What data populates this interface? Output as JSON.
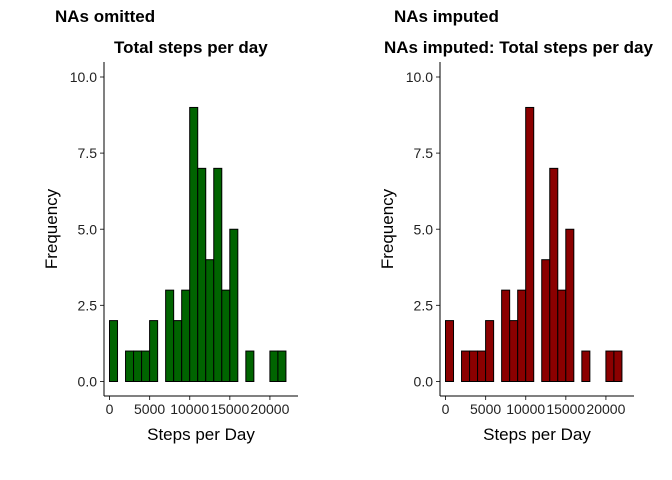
{
  "chart_data": [
    {
      "type": "bar",
      "tag": "NAs omitted",
      "title": "Total steps per day",
      "xlabel": "Steps per Day",
      "ylabel": "Frequency",
      "fill_color": "#006400",
      "bin_width": 1000,
      "bin_starts": [
        0,
        1000,
        2000,
        3000,
        4000,
        5000,
        6000,
        7000,
        8000,
        9000,
        10000,
        11000,
        12000,
        13000,
        14000,
        15000,
        16000,
        17000,
        18000,
        19000,
        20000,
        21000
      ],
      "values": [
        2,
        0,
        1,
        1,
        1,
        2,
        0,
        3,
        2,
        3,
        9,
        7,
        4,
        7,
        3,
        5,
        0,
        1,
        0,
        0,
        1,
        1
      ],
      "x_ticks": [
        "0",
        "5000",
        "10000",
        "15000",
        "20000"
      ],
      "y_ticks": [
        "0.0",
        "2.5",
        "5.0",
        "7.5",
        "10.0"
      ],
      "ylim": [
        0,
        10.5
      ],
      "grid": false
    },
    {
      "type": "bar",
      "tag": "NAs imputed",
      "title": "NAs imputed: Total steps per day",
      "xlabel": "Steps per Day",
      "ylabel": "Frequency",
      "fill_color": "#8B0000",
      "bin_width": 1000,
      "bin_starts": [
        0,
        1000,
        2000,
        3000,
        4000,
        5000,
        6000,
        7000,
        8000,
        9000,
        10000,
        11000,
        12000,
        13000,
        14000,
        15000,
        16000,
        17000,
        18000,
        19000,
        20000,
        21000
      ],
      "values": [
        2,
        0,
        1,
        1,
        1,
        2,
        0,
        3,
        2,
        3,
        9,
        0,
        4,
        7,
        3,
        5,
        0,
        1,
        0,
        0,
        1,
        1
      ],
      "x_ticks": [
        "0",
        "5000",
        "10000",
        "15000",
        "20000"
      ],
      "y_ticks": [
        "0.0",
        "2.5",
        "5.0",
        "7.5",
        "10.0"
      ],
      "ylim": [
        0,
        10.5
      ],
      "grid": false
    }
  ]
}
